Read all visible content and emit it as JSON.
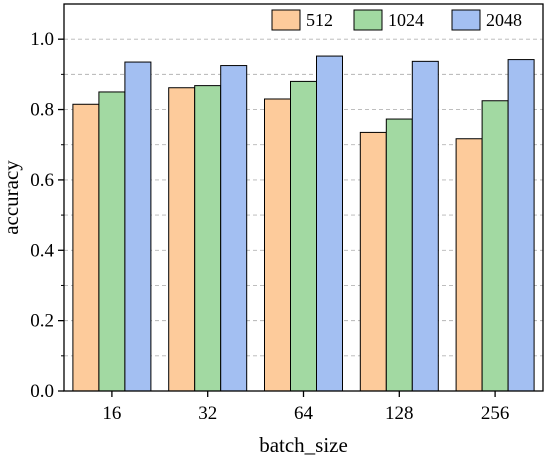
{
  "chart_data": {
    "type": "bar",
    "categories": [
      "16",
      "32",
      "64",
      "128",
      "256"
    ],
    "series": [
      {
        "name": "512",
        "color": "#FDCB9B",
        "values": [
          0.815,
          0.862,
          0.83,
          0.735,
          0.717
        ]
      },
      {
        "name": "1024",
        "color": "#A2D9A2",
        "values": [
          0.85,
          0.868,
          0.88,
          0.773,
          0.825
        ]
      },
      {
        "name": "2048",
        "color": "#A3BFF2",
        "values": [
          0.935,
          0.925,
          0.952,
          0.937,
          0.942
        ]
      }
    ],
    "xlabel": "batch_size",
    "ylabel": "accuracy",
    "ylim": [
      0.0,
      1.1
    ],
    "yticks": [
      "0.0",
      "0.2",
      "0.4",
      "0.6",
      "0.8",
      "1.0"
    ],
    "ytick_values": [
      0.0,
      0.2,
      0.4,
      0.6,
      0.8,
      1.0
    ],
    "grid": "horizontal dashed",
    "legend_position": "top-right"
  }
}
